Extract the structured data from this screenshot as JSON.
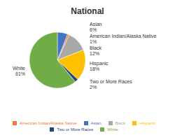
{
  "chart_data": {
    "type": "pie",
    "title": "National",
    "categories": [
      "Asian",
      "American Indian/Alaska Native",
      "Black",
      "Hispanic",
      "Two or More Races",
      "White"
    ],
    "values": [
      6,
      1,
      12,
      18,
      2,
      61
    ],
    "value_labels": [
      "6%",
      "1%",
      "12%",
      "18%",
      "2%",
      "61%"
    ],
    "colors": [
      "#4472C4",
      "#ED7D31",
      "#A9A9A9",
      "#FFC000",
      "#264478",
      "#70AD47"
    ],
    "data_labels": true,
    "legend": "bottom"
  }
}
